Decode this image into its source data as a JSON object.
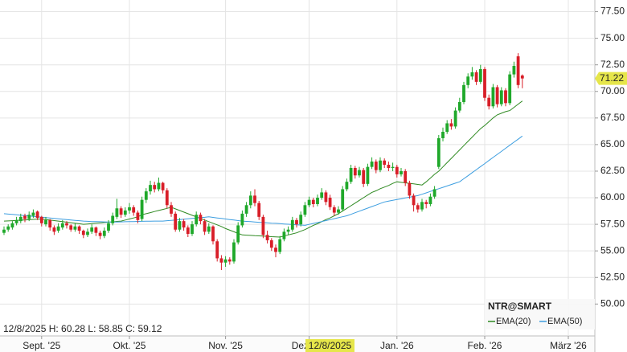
{
  "chart_data": {
    "type": "candlestick",
    "title": "NTR@SMART",
    "info": "12/8/2025 H: 60.28 L: 58.85 C: 59.12",
    "crosshair_label": "12/8/2025",
    "last_label": "71.22",
    "up_color": "#1fa82a",
    "down_color": "#d81e28",
    "categories": [
      null,
      null,
      null,
      null,
      null,
      null,
      null,
      null,
      null,
      "Sept. '25",
      null,
      null,
      null,
      null,
      null,
      null,
      null,
      null,
      null,
      null,
      null,
      null,
      null,
      null,
      null,
      null,
      null,
      null,
      null,
      null,
      "Okt. '25",
      null,
      null,
      null,
      null,
      null,
      null,
      null,
      null,
      null,
      null,
      null,
      null,
      null,
      null,
      null,
      null,
      null,
      null,
      null,
      null,
      null,
      null,
      "Nov. '25",
      null,
      null,
      null,
      null,
      null,
      null,
      null,
      null,
      null,
      null,
      null,
      null,
      null,
      null,
      null,
      null,
      null,
      null,
      null,
      "Dez. '25",
      null,
      null,
      null,
      null,
      null,
      null,
      null,
      null,
      null,
      null,
      null,
      null,
      null,
      null,
      null,
      null,
      null,
      null,
      null,
      null,
      "Jan. '26",
      null,
      null,
      null,
      null,
      null,
      null,
      null,
      null,
      null,
      null,
      null,
      null,
      null,
      null,
      null,
      null,
      null,
      null,
      null,
      null,
      "Feb. '26",
      null,
      null,
      null,
      null,
      null,
      null,
      null,
      null,
      null,
      null,
      null,
      null,
      null,
      null,
      null,
      null,
      null,
      null,
      null,
      "März '26",
      null,
      null,
      null,
      null,
      null,
      null
    ],
    "ohlc": [
      [
        56.7,
        57.3,
        56.5,
        57.0
      ],
      [
        57.0,
        57.5,
        56.8,
        57.3
      ],
      [
        57.2,
        57.8,
        57.0,
        57.6
      ],
      [
        57.6,
        58.2,
        57.4,
        57.9
      ],
      [
        57.8,
        58.5,
        57.6,
        58.2
      ],
      [
        58.3,
        58.5,
        57.7,
        58.0
      ],
      [
        58.0,
        58.7,
        57.8,
        58.4
      ],
      [
        58.3,
        58.9,
        58.1,
        58.6
      ],
      [
        58.7,
        58.8,
        57.9,
        58.1
      ],
      [
        58.2,
        58.3,
        57.3,
        57.6
      ],
      [
        57.5,
        58.2,
        57.3,
        57.9
      ],
      [
        57.9,
        58.0,
        56.9,
        57.2
      ],
      [
        57.2,
        57.4,
        56.5,
        56.8
      ],
      [
        56.9,
        57.6,
        56.7,
        57.3
      ],
      [
        57.2,
        57.9,
        57.0,
        57.6
      ],
      [
        57.6,
        57.8,
        57.1,
        57.4
      ],
      [
        57.4,
        57.5,
        56.8,
        57.0
      ],
      [
        57.0,
        57.6,
        56.8,
        57.3
      ],
      [
        57.3,
        57.4,
        56.6,
        56.9
      ],
      [
        56.9,
        57.0,
        56.2,
        56.5
      ],
      [
        56.5,
        57.1,
        56.3,
        56.8
      ],
      [
        56.8,
        57.5,
        56.6,
        57.2
      ],
      [
        57.2,
        57.3,
        56.4,
        56.7
      ],
      [
        56.7,
        56.9,
        56.1,
        56.4
      ],
      [
        56.4,
        57.2,
        56.2,
        56.9
      ],
      [
        56.9,
        57.9,
        56.7,
        57.6
      ],
      [
        57.6,
        58.6,
        57.4,
        58.3
      ],
      [
        58.2,
        59.9,
        58.0,
        59.0
      ],
      [
        59.0,
        59.2,
        58.1,
        58.4
      ],
      [
        58.4,
        59.1,
        58.2,
        58.8
      ],
      [
        58.8,
        59.5,
        58.5,
        59.1
      ],
      [
        59.1,
        59.3,
        58.3,
        58.6
      ],
      [
        58.6,
        58.8,
        57.6,
        57.9
      ],
      [
        58.0,
        60.1,
        57.8,
        59.8
      ],
      [
        59.8,
        60.9,
        59.5,
        60.6
      ],
      [
        60.6,
        61.6,
        60.3,
        61.2
      ],
      [
        61.2,
        61.5,
        60.5,
        60.8
      ],
      [
        60.8,
        61.9,
        60.6,
        61.4
      ],
      [
        61.4,
        61.5,
        60.4,
        60.7
      ],
      [
        60.7,
        60.9,
        59.0,
        59.3
      ],
      [
        59.3,
        59.6,
        58.2,
        58.5
      ],
      [
        58.5,
        58.7,
        56.8,
        57.0
      ],
      [
        57.0,
        58.1,
        56.8,
        57.8
      ],
      [
        57.8,
        58.0,
        56.9,
        57.2
      ],
      [
        57.2,
        57.4,
        56.3,
        56.6
      ],
      [
        56.6,
        57.8,
        56.4,
        57.5
      ],
      [
        57.5,
        58.7,
        57.3,
        58.4
      ],
      [
        58.4,
        58.6,
        57.5,
        57.8
      ],
      [
        57.8,
        58.0,
        56.5,
        56.8
      ],
      [
        56.8,
        57.6,
        56.6,
        57.3
      ],
      [
        57.3,
        57.4,
        55.6,
        55.9
      ],
      [
        55.9,
        56.1,
        54.0,
        54.3
      ],
      [
        54.3,
        54.6,
        53.2,
        53.9
      ],
      [
        53.9,
        54.5,
        53.5,
        54.2
      ],
      [
        54.2,
        54.4,
        53.7,
        54.0
      ],
      [
        54.0,
        56.1,
        53.8,
        55.8
      ],
      [
        55.8,
        57.7,
        55.6,
        57.4
      ],
      [
        57.4,
        58.8,
        57.2,
        58.5
      ],
      [
        58.5,
        59.6,
        58.2,
        59.3
      ],
      [
        59.3,
        60.6,
        59.0,
        60.2
      ],
      [
        60.2,
        60.8,
        59.2,
        59.5
      ],
      [
        59.5,
        59.7,
        57.9,
        58.2
      ],
      [
        58.2,
        58.4,
        56.2,
        56.5
      ],
      [
        56.5,
        56.9,
        55.7,
        56.0
      ],
      [
        56.0,
        56.2,
        55.0,
        55.3
      ],
      [
        55.3,
        55.6,
        54.4,
        54.9
      ],
      [
        54.9,
        56.4,
        54.7,
        56.1
      ],
      [
        56.1,
        57.1,
        55.9,
        56.8
      ],
      [
        56.8,
        57.3,
        56.5,
        57.0
      ],
      [
        57.0,
        58.2,
        56.8,
        57.9
      ],
      [
        57.9,
        58.1,
        57.2,
        57.5
      ],
      [
        57.5,
        58.7,
        57.3,
        58.4
      ],
      [
        58.4,
        59.6,
        58.2,
        59.3
      ],
      [
        59.3,
        60.1,
        59.1,
        59.8
      ],
      [
        59.8,
        60.0,
        59.1,
        59.4
      ],
      [
        59.4,
        60.3,
        59.2,
        60.0
      ],
      [
        60.0,
        60.9,
        59.8,
        60.5
      ],
      [
        60.5,
        60.7,
        59.3,
        59.6
      ],
      [
        60.0,
        60.28,
        58.85,
        59.12
      ],
      [
        59.1,
        59.3,
        58.3,
        58.6
      ],
      [
        58.6,
        59.2,
        58.4,
        58.9
      ],
      [
        58.9,
        61.1,
        58.7,
        60.8
      ],
      [
        60.8,
        61.8,
        60.6,
        61.5
      ],
      [
        61.5,
        63.1,
        61.3,
        62.8
      ],
      [
        62.8,
        63.0,
        61.8,
        62.1
      ],
      [
        62.1,
        62.9,
        61.9,
        62.6
      ],
      [
        62.6,
        62.8,
        61.0,
        61.3
      ],
      [
        61.3,
        63.2,
        61.1,
        62.9
      ],
      [
        62.9,
        63.8,
        62.7,
        63.4
      ],
      [
        63.4,
        63.6,
        62.3,
        62.6
      ],
      [
        62.6,
        63.8,
        62.4,
        63.5
      ],
      [
        63.5,
        63.7,
        62.8,
        63.1
      ],
      [
        63.1,
        63.4,
        62.5,
        62.8
      ],
      [
        62.8,
        63.3,
        62.5,
        62.9
      ],
      [
        62.9,
        63.1,
        61.9,
        62.2
      ],
      [
        62.2,
        62.8,
        62.0,
        62.5
      ],
      [
        62.5,
        62.7,
        61.1,
        61.4
      ],
      [
        61.4,
        61.6,
        59.9,
        60.2
      ],
      [
        60.2,
        60.4,
        58.7,
        59.3
      ],
      [
        59.3,
        59.5,
        58.6,
        58.9
      ],
      [
        58.9,
        59.9,
        58.7,
        59.6
      ],
      [
        59.6,
        59.8,
        59.0,
        59.4
      ],
      [
        59.4,
        60.4,
        59.2,
        60.1
      ],
      [
        60.1,
        61.1,
        59.9,
        60.8
      ],
      [
        62.9,
        65.9,
        62.7,
        65.6
      ],
      [
        65.6,
        66.6,
        65.3,
        66.2
      ],
      [
        66.2,
        67.3,
        66.0,
        67.0
      ],
      [
        67.0,
        67.4,
        66.4,
        66.7
      ],
      [
        66.7,
        68.5,
        66.5,
        68.2
      ],
      [
        68.2,
        69.4,
        68.0,
        69.0
      ],
      [
        69.0,
        70.9,
        68.8,
        70.6
      ],
      [
        70.6,
        71.7,
        70.3,
        71.4
      ],
      [
        71.4,
        72.3,
        71.1,
        71.8
      ],
      [
        71.8,
        72.0,
        70.6,
        70.9
      ],
      [
        70.9,
        72.5,
        70.7,
        72.1
      ],
      [
        72.1,
        72.3,
        69.1,
        69.4
      ],
      [
        69.4,
        69.7,
        68.3,
        68.6
      ],
      [
        68.6,
        70.7,
        68.4,
        70.4
      ],
      [
        70.4,
        70.6,
        68.5,
        68.8
      ],
      [
        68.8,
        70.4,
        68.6,
        70.1
      ],
      [
        70.1,
        70.3,
        68.6,
        68.9
      ],
      [
        68.9,
        71.9,
        68.7,
        71.6
      ],
      [
        71.6,
        72.8,
        71.3,
        72.4
      ],
      [
        73.3,
        73.6,
        70.3,
        70.6
      ],
      [
        71.5,
        71.6,
        70.3,
        71.22
      ],
      null,
      null,
      null,
      null,
      null,
      null,
      null,
      null,
      null,
      null,
      null,
      null,
      null,
      null,
      null,
      null,
      null
    ],
    "series": [
      {
        "name": "EMA(20)",
        "color": "#2f8a22",
        "values": [
          57.8,
          57.82,
          57.84,
          57.87,
          57.89,
          57.91,
          57.93,
          57.96,
          57.98,
          58.0,
          57.95,
          57.9,
          57.85,
          57.8,
          57.75,
          57.7,
          57.65,
          57.6,
          57.55,
          57.5,
          57.53,
          57.57,
          57.6,
          57.63,
          57.67,
          57.7,
          57.73,
          57.77,
          57.8,
          57.9,
          58.0,
          58.1,
          58.2,
          58.4,
          58.5,
          58.6,
          58.7,
          58.8,
          58.9,
          59.0,
          59.1,
          58.95,
          58.8,
          58.65,
          58.5,
          58.35,
          58.2,
          58.05,
          57.9,
          57.75,
          57.6,
          57.45,
          57.3,
          57.1,
          56.95,
          56.8,
          56.65,
          56.5,
          56.48,
          56.46,
          56.43,
          56.41,
          56.39,
          56.37,
          56.34,
          56.32,
          56.3,
          56.4,
          56.5,
          56.6,
          56.7,
          56.85,
          57.0,
          57.2,
          57.4,
          57.55,
          57.75,
          57.95,
          58.1,
          58.3,
          58.5,
          58.75,
          59.0,
          59.25,
          59.5,
          59.75,
          60.0,
          60.25,
          60.5,
          60.65,
          60.85,
          61.0,
          61.15,
          61.35,
          61.5,
          61.45,
          61.4,
          61.35,
          61.3,
          61.25,
          61.2,
          61.5,
          61.85,
          62.2,
          62.5,
          62.9,
          63.3,
          63.7,
          64.1,
          64.5,
          64.9,
          65.3,
          65.7,
          66.1,
          66.5,
          66.8,
          67.15,
          67.5,
          67.8,
          67.95,
          68.1,
          68.2,
          68.5,
          68.8,
          69.1,
          null,
          null,
          null,
          null,
          null,
          null,
          null,
          null,
          null,
          null,
          null,
          null,
          null,
          null,
          null,
          null,
          null
        ]
      },
      {
        "name": "EMA(50)",
        "color": "#3d9ee0",
        "values": [
          58.5,
          58.46,
          58.43,
          58.39,
          58.35,
          58.32,
          58.28,
          58.24,
          58.21,
          58.17,
          58.13,
          58.09,
          58.06,
          58.02,
          57.98,
          57.95,
          57.91,
          57.87,
          57.84,
          57.8,
          57.78,
          57.76,
          57.75,
          57.74,
          57.73,
          57.72,
          57.72,
          57.72,
          57.73,
          57.74,
          57.75,
          57.76,
          57.77,
          57.78,
          57.79,
          57.79,
          57.8,
          57.8,
          57.8,
          57.84,
          57.87,
          57.91,
          57.95,
          57.98,
          58.02,
          58.05,
          58.09,
          58.13,
          58.16,
          58.2,
          58.15,
          58.1,
          58.05,
          58.0,
          57.95,
          57.9,
          57.85,
          57.8,
          57.77,
          57.75,
          57.72,
          57.69,
          57.67,
          57.64,
          57.61,
          57.59,
          57.56,
          57.53,
          57.51,
          57.48,
          57.45,
          57.43,
          57.4,
          57.49,
          57.58,
          57.67,
          57.76,
          57.85,
          57.94,
          58.03,
          58.12,
          58.21,
          58.3,
          58.44,
          58.59,
          58.73,
          58.88,
          59.02,
          59.17,
          59.31,
          59.46,
          59.6,
          59.68,
          59.75,
          59.83,
          59.9,
          59.98,
          60.05,
          60.13,
          60.2,
          60.33,
          60.46,
          60.59,
          60.72,
          60.85,
          60.98,
          61.11,
          61.24,
          61.37,
          61.5,
          61.79,
          62.07,
          62.36,
          62.64,
          62.93,
          63.21,
          63.5,
          63.79,
          64.08,
          64.36,
          64.65,
          64.94,
          65.23,
          65.51,
          65.8,
          null,
          null,
          null,
          null,
          null,
          null,
          null,
          null,
          null,
          null,
          null,
          null,
          null,
          null,
          null,
          null,
          null
        ]
      }
    ],
    "ylim": [
      47,
      78.6
    ],
    "yticks": [
      {
        "value": 50,
        "label": "50.00"
      },
      {
        "value": 52.5,
        "label": "52.50"
      },
      {
        "value": 55,
        "label": "55.00"
      },
      {
        "value": 57.5,
        "label": "57.50"
      },
      {
        "value": 60,
        "label": "60.00"
      },
      {
        "value": 62.5,
        "label": "62.50"
      },
      {
        "value": 65,
        "label": "65.00"
      },
      {
        "value": 67.5,
        "label": "67.50"
      },
      {
        "value": 70,
        "label": "70.00"
      },
      {
        "value": 72.5,
        "label": "72.50"
      },
      {
        "value": 75,
        "label": "75.00"
      },
      {
        "value": 77.5,
        "label": "77.50"
      }
    ],
    "grid": true
  }
}
